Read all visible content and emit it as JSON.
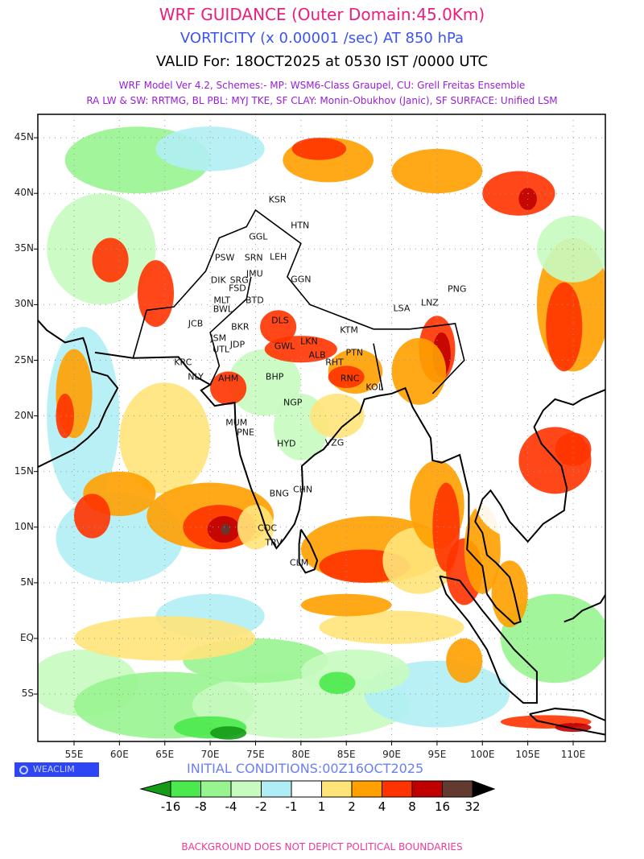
{
  "header": {
    "title": "WRF GUIDANCE (Outer Domain:45.0Km)",
    "field": "VORTICITY (x 0.00001 /sec) AT 850 hPa",
    "valid": "VALID For: 18OCT2025 at 0530 IST /0000 UTC",
    "schemes_line1": "WRF Model Ver 4.2, Schemes:- MP: WSM6-Class Graupel, CU: Grell Freitas Ensemble",
    "schemes_line2": "RA LW & SW: RRTMG, BL PBL: MYJ TKE, SF CLAY: Monin-Obukhov (Janic), SF SURFACE: Unified LSM"
  },
  "map": {
    "lat_ticks": [
      {
        "v": 45,
        "label": "45N"
      },
      {
        "v": 40,
        "label": "40N"
      },
      {
        "v": 35,
        "label": "35N"
      },
      {
        "v": 30,
        "label": "30N"
      },
      {
        "v": 25,
        "label": "25N"
      },
      {
        "v": 20,
        "label": "20N"
      },
      {
        "v": 15,
        "label": "15N"
      },
      {
        "v": 10,
        "label": "10N"
      },
      {
        "v": 5,
        "label": "5N"
      },
      {
        "v": 0,
        "label": "EQ"
      },
      {
        "v": -5,
        "label": "5S"
      }
    ],
    "lon_ticks": [
      {
        "v": 55,
        "label": "55E"
      },
      {
        "v": 60,
        "label": "60E"
      },
      {
        "v": 65,
        "label": "65E"
      },
      {
        "v": 70,
        "label": "70E"
      },
      {
        "v": 75,
        "label": "75E"
      },
      {
        "v": 80,
        "label": "80E"
      },
      {
        "v": 85,
        "label": "85E"
      },
      {
        "v": 90,
        "label": "90E"
      },
      {
        "v": 95,
        "label": "95E"
      },
      {
        "v": 100,
        "label": "100E"
      },
      {
        "v": 105,
        "label": "105E"
      },
      {
        "v": 110,
        "label": "110E"
      }
    ],
    "cities": [
      {
        "n": "KSR",
        "lon": 77.4,
        "lat": 39.4
      },
      {
        "n": "HTN",
        "lon": 79.9,
        "lat": 37.1
      },
      {
        "n": "GGL",
        "lon": 75.3,
        "lat": 36.1
      },
      {
        "n": "PSW",
        "lon": 71.6,
        "lat": 34.2
      },
      {
        "n": "SRN",
        "lon": 74.8,
        "lat": 34.2
      },
      {
        "n": "LEH",
        "lon": 77.5,
        "lat": 34.3
      },
      {
        "n": "JMU",
        "lon": 74.9,
        "lat": 32.8
      },
      {
        "n": "GGN",
        "lon": 80.0,
        "lat": 32.3
      },
      {
        "n": "DIK",
        "lon": 70.9,
        "lat": 32.2
      },
      {
        "n": "SRG",
        "lon": 73.2,
        "lat": 32.2
      },
      {
        "n": "FSD",
        "lon": 73.0,
        "lat": 31.5
      },
      {
        "n": "MLT",
        "lon": 71.3,
        "lat": 30.4
      },
      {
        "n": "BTD",
        "lon": 74.9,
        "lat": 30.4
      },
      {
        "n": "BWL",
        "lon": 71.4,
        "lat": 29.6
      },
      {
        "n": "DLS",
        "lon": 77.7,
        "lat": 28.6
      },
      {
        "n": "JCB",
        "lon": 68.4,
        "lat": 28.3
      },
      {
        "n": "BKR",
        "lon": 73.3,
        "lat": 28.0
      },
      {
        "n": "JSM",
        "lon": 70.9,
        "lat": 27.0
      },
      {
        "n": "JDP",
        "lon": 73.0,
        "lat": 26.4
      },
      {
        "n": "UTL",
        "lon": 71.2,
        "lat": 26.0
      },
      {
        "n": "GWL",
        "lon": 78.2,
        "lat": 26.3
      },
      {
        "n": "LKN",
        "lon": 80.9,
        "lat": 26.7
      },
      {
        "n": "ALB",
        "lon": 81.8,
        "lat": 25.5
      },
      {
        "n": "PTN",
        "lon": 85.9,
        "lat": 25.7
      },
      {
        "n": "RHT",
        "lon": 83.7,
        "lat": 24.8
      },
      {
        "n": "RNC",
        "lon": 85.4,
        "lat": 23.4
      },
      {
        "n": "KTM",
        "lon": 85.3,
        "lat": 27.7
      },
      {
        "n": "LSA",
        "lon": 91.1,
        "lat": 29.7
      },
      {
        "n": "LNZ",
        "lon": 94.2,
        "lat": 30.2
      },
      {
        "n": "PNG",
        "lon": 97.2,
        "lat": 31.4
      },
      {
        "n": "KRC",
        "lon": 67.0,
        "lat": 24.8
      },
      {
        "n": "NLY",
        "lon": 68.4,
        "lat": 23.5
      },
      {
        "n": "AHM",
        "lon": 72.0,
        "lat": 23.4
      },
      {
        "n": "BHP",
        "lon": 77.1,
        "lat": 23.5
      },
      {
        "n": "KOL",
        "lon": 88.1,
        "lat": 22.6
      },
      {
        "n": "NGP",
        "lon": 79.1,
        "lat": 21.2
      },
      {
        "n": "MUM",
        "lon": 72.9,
        "lat": 19.4
      },
      {
        "n": "PNE",
        "lon": 73.9,
        "lat": 18.5
      },
      {
        "n": "HYD",
        "lon": 78.4,
        "lat": 17.5
      },
      {
        "n": "VZG",
        "lon": 83.7,
        "lat": 17.6
      },
      {
        "n": "CHN",
        "lon": 80.2,
        "lat": 13.4
      },
      {
        "n": "BNG",
        "lon": 77.6,
        "lat": 13.0
      },
      {
        "n": "COC",
        "lon": 76.3,
        "lat": 9.9
      },
      {
        "n": "TRV",
        "lon": 77.0,
        "lat": 8.6
      },
      {
        "n": "CLM",
        "lon": 79.8,
        "lat": 6.8
      }
    ]
  },
  "legend": {
    "brand": "WEACLIM",
    "initial_conditions": "INITIAL CONDITIONS:00Z16OCT2025",
    "colors": [
      "#159b16",
      "#4be94d",
      "#98f48f",
      "#c7fbc0",
      "#b0eef5",
      "#ffffff",
      "#ffe47a",
      "#ffa000",
      "#ff3300",
      "#c00000",
      "#633a30",
      "#000000"
    ],
    "labels": [
      "-16",
      "-8",
      "-4",
      "-2",
      "-1",
      "1",
      "2",
      "4",
      "8",
      "16",
      "32"
    ]
  },
  "footer": "BACKGROUND DOES NOT DEPICT POLITICAL BOUNDARIES"
}
